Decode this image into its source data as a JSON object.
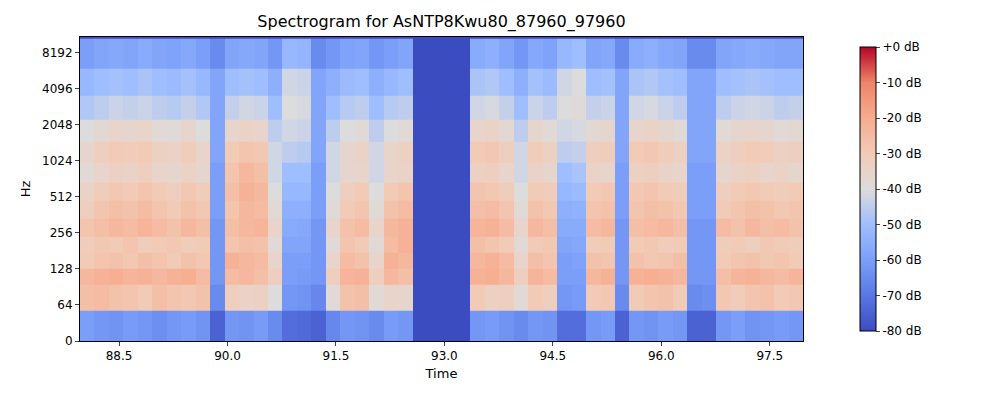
{
  "chart_data": {
    "type": "heatmap",
    "title": "Spectrogram for AsNTP8Kwu80_87960_97960",
    "x_label": "Time",
    "y_label": "Hz",
    "color": "coolwarm",
    "log": "y",
    "xlim": [
      87.96,
      97.96
    ],
    "ylim": [
      0,
      11025
    ],
    "xticks": [
      88.5,
      {
        "value": 90,
        "label": "90.0"
      },
      91.5,
      {
        "value": 93,
        "label": "93.0"
      },
      94.5,
      {
        "value": 96,
        "label": "96.0"
      },
      97.5
    ],
    "yticks": [
      0,
      64,
      128,
      256,
      512,
      1024,
      2048,
      4096,
      8192
    ],
    "colorbar_range": [
      -80,
      0
    ],
    "colorbar_ticks": [
      {
        "value": 0,
        "label": "+0 dB"
      },
      {
        "value": -10,
        "label": "-10 dB"
      },
      {
        "value": -20,
        "label": "-20 dB"
      },
      {
        "value": -30,
        "label": "-30 dB"
      },
      {
        "value": -40,
        "label": "-40 dB"
      },
      {
        "value": -50,
        "label": "-50 dB"
      },
      {
        "value": -60,
        "label": "-60 dB"
      },
      {
        "value": -70,
        "label": "-70 dB"
      },
      {
        "value": -80,
        "label": "-80 dB"
      }
    ],
    "x": [
      88.06,
      88.26,
      88.46,
      88.66,
      88.86,
      89.06,
      89.26,
      89.46,
      89.66,
      89.86,
      90.06,
      90.26,
      90.46,
      90.66,
      90.86,
      91.06,
      91.26,
      91.46,
      91.66,
      91.86,
      92.06,
      92.26,
      92.46,
      92.66,
      92.86,
      93.06,
      93.26,
      93.46,
      93.66,
      93.86,
      94.06,
      94.26,
      94.46,
      94.66,
      94.86,
      95.06,
      95.26,
      95.46,
      95.66,
      95.86,
      96.06,
      96.26,
      96.46,
      96.66,
      96.86,
      97.06,
      97.26,
      97.46,
      97.66,
      97.86
    ],
    "y": [
      24,
      80,
      110,
      150,
      200,
      280,
      400,
      560,
      800,
      1200,
      1800,
      2800,
      4500,
      8000
    ],
    "cells": [
      [
        -60,
        -62,
        -63,
        -61,
        -62,
        -64,
        -62,
        -61,
        -63,
        -75,
        -62,
        -63,
        -61,
        -65,
        -72,
        -73,
        -75,
        -66,
        -62,
        -63,
        -65,
        -61,
        -62,
        -80,
        -80,
        -80,
        -80,
        -62,
        -61,
        -63,
        -65,
        -62,
        -63,
        -72,
        -72,
        -62,
        -61,
        -75,
        -62,
        -63,
        -61,
        -62,
        -75,
        -75,
        -62,
        -60,
        -63,
        -62,
        -61,
        -62
      ],
      [
        -26,
        -25,
        -27,
        -28,
        -30,
        -26,
        -28,
        -29,
        -27,
        -65,
        -32,
        -34,
        -33,
        -40,
        -62,
        -63,
        -66,
        -38,
        -27,
        -26,
        -38,
        -35,
        -36,
        -80,
        -80,
        -80,
        -80,
        -30,
        -33,
        -32,
        -38,
        -30,
        -32,
        -62,
        -61,
        -30,
        -29,
        -65,
        -30,
        -28,
        -27,
        -30,
        -65,
        -64,
        -29,
        -31,
        -28,
        -27,
        -30,
        -29
      ],
      [
        -24,
        -22,
        -21,
        -23,
        -22,
        -24,
        -22,
        -21,
        -25,
        -62,
        -25,
        -24,
        -26,
        -32,
        -60,
        -61,
        -62,
        -32,
        -23,
        -22,
        -32,
        -24,
        -26,
        -80,
        -80,
        -80,
        -80,
        -22,
        -21,
        -24,
        -32,
        -23,
        -25,
        -60,
        -60,
        -24,
        -22,
        -62,
        -22,
        -21,
        -22,
        -24,
        -62,
        -62,
        -26,
        -23,
        -22,
        -24,
        -25,
        -23
      ],
      [
        -30,
        -28,
        -27,
        -29,
        -26,
        -28,
        -30,
        -27,
        -29,
        -62,
        -22,
        -24,
        -25,
        -35,
        -60,
        -60,
        -62,
        -35,
        -25,
        -27,
        -35,
        -22,
        -24,
        -80,
        -80,
        -80,
        -80,
        -24,
        -22,
        -25,
        -35,
        -26,
        -28,
        -60,
        -59,
        -27,
        -28,
        -62,
        -27,
        -29,
        -28,
        -26,
        -62,
        -62,
        -30,
        -28,
        -27,
        -29,
        -28,
        -30
      ],
      [
        -31,
        -29,
        -30,
        -28,
        -31,
        -30,
        -29,
        -31,
        -30,
        -62,
        -28,
        -26,
        -27,
        -38,
        -58,
        -58,
        -62,
        -38,
        -28,
        -30,
        -38,
        -25,
        -22,
        -80,
        -80,
        -80,
        -80,
        -26,
        -28,
        -30,
        -38,
        -30,
        -29,
        -58,
        -57,
        -31,
        -30,
        -62,
        -30,
        -29,
        -31,
        -30,
        -62,
        -62,
        -31,
        -30,
        -32,
        -29,
        -30,
        -31
      ],
      [
        -28,
        -26,
        -24,
        -25,
        -23,
        -25,
        -27,
        -24,
        -26,
        -62,
        -26,
        -24,
        -23,
        -35,
        -56,
        -57,
        -62,
        -35,
        -27,
        -25,
        -35,
        -24,
        -22,
        -80,
        -80,
        -80,
        -80,
        -23,
        -22,
        -25,
        -35,
        -24,
        -26,
        -56,
        -56,
        -25,
        -24,
        -62,
        -26,
        -25,
        -24,
        -26,
        -62,
        -62,
        -25,
        -27,
        -24,
        -26,
        -25,
        -27
      ],
      [
        -32,
        -28,
        -26,
        -27,
        -25,
        -28,
        -30,
        -27,
        -29,
        -60,
        -28,
        -24,
        -25,
        -38,
        -55,
        -55,
        -60,
        -38,
        -30,
        -28,
        -38,
        -27,
        -25,
        -80,
        -80,
        -80,
        -80,
        -26,
        -25,
        -28,
        -38,
        -27,
        -29,
        -55,
        -54,
        -28,
        -27,
        -60,
        -28,
        -26,
        -27,
        -29,
        -60,
        -60,
        -30,
        -28,
        -26,
        -27,
        -29,
        -28
      ],
      [
        -34,
        -31,
        -29,
        -30,
        -28,
        -30,
        -32,
        -29,
        -31,
        -60,
        -26,
        -22,
        -24,
        -40,
        -52,
        -52,
        -60,
        -40,
        -32,
        -30,
        -40,
        -30,
        -28,
        -80,
        -80,
        -80,
        -80,
        -28,
        -29,
        -31,
        -40,
        -30,
        -31,
        -52,
        -51,
        -30,
        -29,
        -60,
        -29,
        -28,
        -30,
        -31,
        -60,
        -60,
        -32,
        -30,
        -29,
        -30,
        -31,
        -30
      ],
      [
        -38,
        -35,
        -33,
        -34,
        -32,
        -35,
        -36,
        -34,
        -36,
        -60,
        -28,
        -24,
        -26,
        -42,
        -50,
        -50,
        -60,
        -42,
        -36,
        -35,
        -42,
        -35,
        -34,
        -80,
        -80,
        -80,
        -80,
        -33,
        -32,
        -35,
        -42,
        -34,
        -36,
        -50,
        -48,
        -34,
        -35,
        -60,
        -33,
        -32,
        -34,
        -35,
        -60,
        -60,
        -36,
        -34,
        -33,
        -35,
        -34,
        -36
      ],
      [
        -36,
        -32,
        -30,
        -31,
        -30,
        -33,
        -34,
        -31,
        -35,
        -58,
        -30,
        -28,
        -29,
        -42,
        -45,
        -46,
        -58,
        -42,
        -36,
        -34,
        -42,
        -35,
        -33,
        -80,
        -80,
        -80,
        -80,
        -30,
        -29,
        -32,
        -42,
        -31,
        -33,
        -45,
        -44,
        -32,
        -31,
        -58,
        -30,
        -29,
        -31,
        -33,
        -58,
        -58,
        -34,
        -32,
        -30,
        -31,
        -33,
        -32
      ],
      [
        -40,
        -37,
        -35,
        -36,
        -35,
        -38,
        -39,
        -36,
        -40,
        -58,
        -36,
        -34,
        -35,
        -45,
        -42,
        -43,
        -58,
        -45,
        -40,
        -38,
        -45,
        -40,
        -38,
        -80,
        -80,
        -80,
        -80,
        -35,
        -34,
        -37,
        -45,
        -36,
        -38,
        -42,
        -41,
        -37,
        -36,
        -58,
        -35,
        -34,
        -36,
        -38,
        -58,
        -58,
        -38,
        -36,
        -35,
        -36,
        -38,
        -37
      ],
      [
        -47,
        -45,
        -43,
        -44,
        -43,
        -45,
        -46,
        -44,
        -47,
        -58,
        -44,
        -42,
        -43,
        -50,
        -40,
        -41,
        -58,
        -50,
        -46,
        -45,
        -50,
        -46,
        -45,
        -80,
        -80,
        -80,
        -80,
        -42,
        -41,
        -44,
        -50,
        -43,
        -45,
        -40,
        -39,
        -44,
        -43,
        -58,
        -42,
        -41,
        -43,
        -45,
        -58,
        -58,
        -45,
        -43,
        -42,
        -43,
        -45,
        -44
      ],
      [
        -52,
        -50,
        -49,
        -50,
        -48,
        -50,
        -51,
        -49,
        -52,
        -58,
        -50,
        -49,
        -50,
        -55,
        -42,
        -43,
        -58,
        -55,
        -51,
        -50,
        -55,
        -52,
        -50,
        -80,
        -80,
        -80,
        -80,
        -48,
        -47,
        -50,
        -55,
        -49,
        -51,
        -42,
        -40,
        -50,
        -49,
        -58,
        -48,
        -47,
        -49,
        -50,
        -58,
        -58,
        -50,
        -49,
        -48,
        -49,
        -50,
        -50
      ],
      [
        -60,
        -58,
        -57,
        -58,
        -56,
        -58,
        -59,
        -57,
        -60,
        -65,
        -58,
        -57,
        -58,
        -62,
        -52,
        -53,
        -65,
        -62,
        -59,
        -58,
        -62,
        -60,
        -58,
        -80,
        -80,
        -80,
        -80,
        -56,
        -55,
        -58,
        -62,
        -57,
        -59,
        -52,
        -50,
        -58,
        -57,
        -65,
        -56,
        -55,
        -57,
        -58,
        -65,
        -65,
        -58,
        -57,
        -56,
        -57,
        -58,
        -58
      ]
    ]
  }
}
